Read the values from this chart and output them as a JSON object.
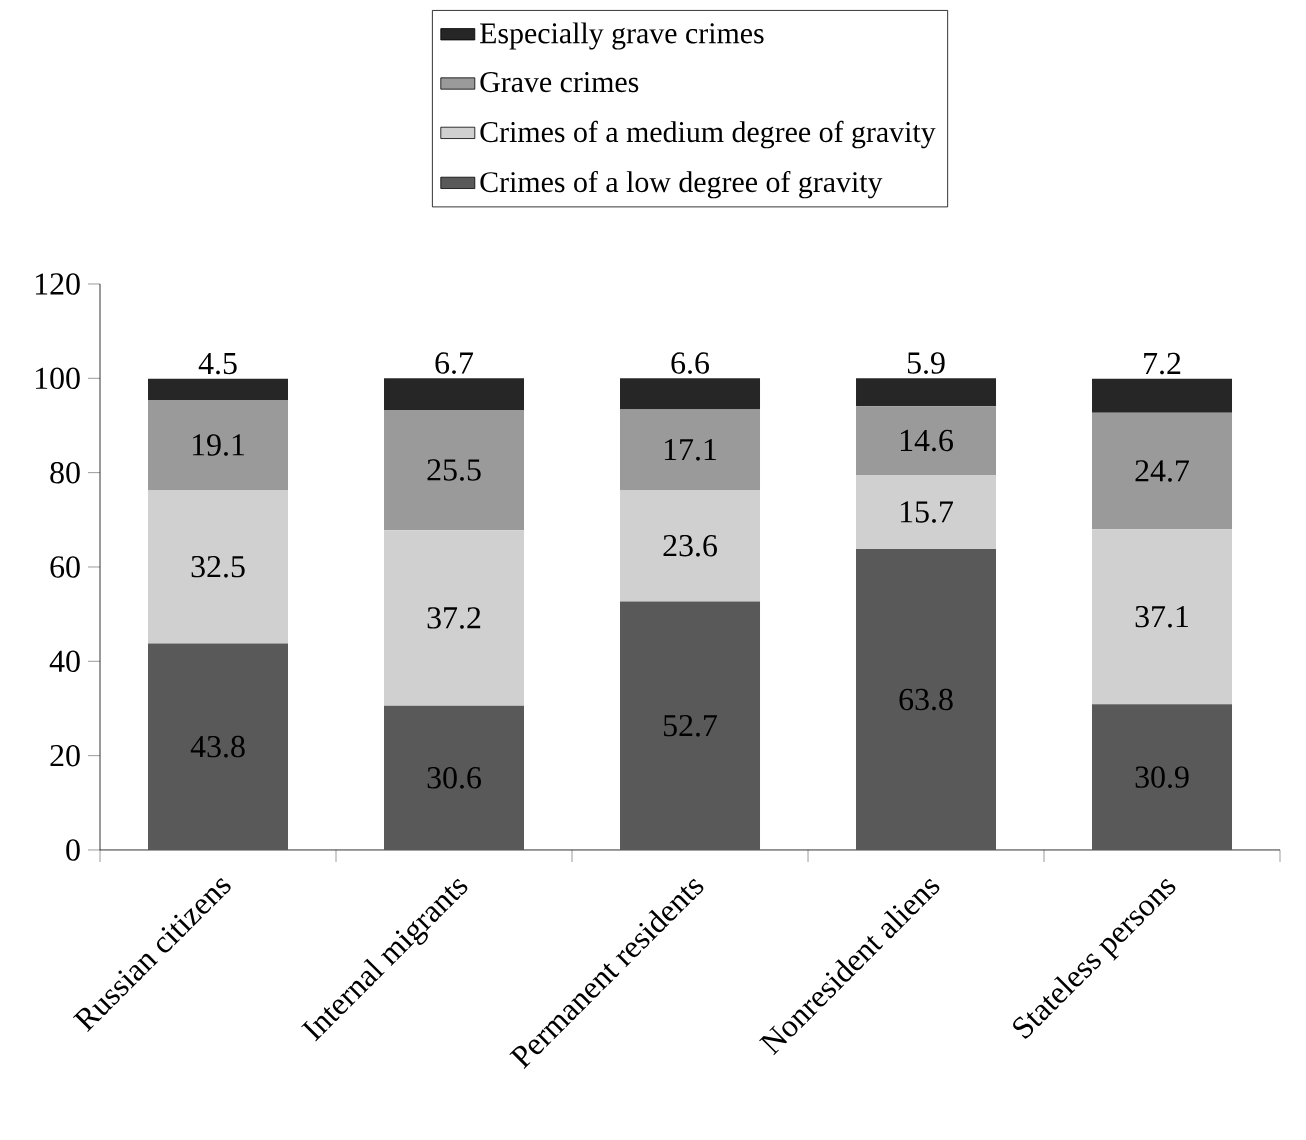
{
  "chart_data": {
    "type": "bar",
    "stacked": true,
    "categories": [
      "Russian citizens",
      "Internal migrants",
      "Permanent residents",
      "Nonresident aliens",
      "Stateless persons"
    ],
    "series": [
      {
        "name": "Crimes of a low degree of gravity",
        "color": "#595959",
        "values": [
          43.8,
          30.6,
          52.7,
          63.8,
          30.9
        ]
      },
      {
        "name": "Crimes of a medium degree of gravity",
        "color": "#d0d0d0",
        "values": [
          32.5,
          37.2,
          23.6,
          15.7,
          37.1
        ]
      },
      {
        "name": "Grave crimes",
        "color": "#9a9a9a",
        "values": [
          19.1,
          25.5,
          17.1,
          14.6,
          24.7
        ]
      },
      {
        "name": "Especially grave crimes",
        "color": "#262626",
        "values": [
          4.5,
          6.7,
          6.6,
          5.9,
          7.2
        ]
      }
    ],
    "ylim": [
      0,
      120
    ],
    "yticks": [
      0,
      20,
      40,
      60,
      80,
      100,
      120
    ],
    "legend": "top",
    "data_labels": true
  }
}
